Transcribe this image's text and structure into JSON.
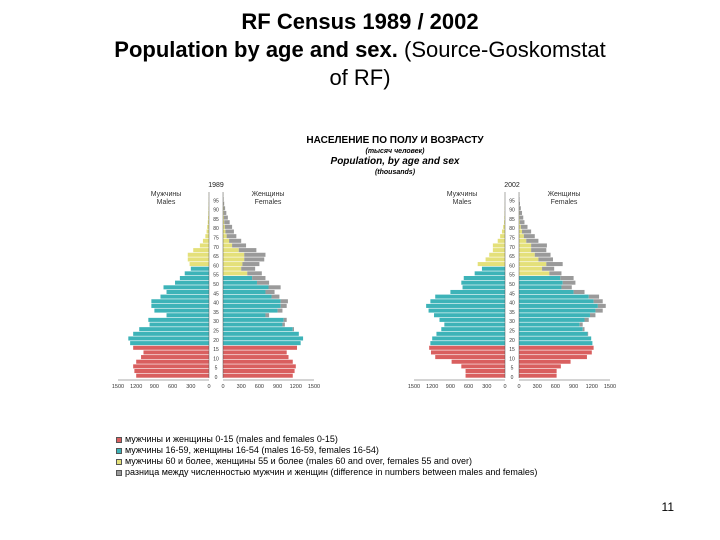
{
  "slide": {
    "title_line1": "RF Census 1989 / 2002",
    "title_line2_bold": "Population by age and sex.",
    "title_line2_rest": " (Source-Goskomstat",
    "title_line3": "of RF)",
    "page_number": "11"
  },
  "chart_data": {
    "type": "bar",
    "title_ru": "НАСЕЛЕНИЕ ПО ПОЛУ И ВОЗРАСТУ",
    "subtitle_ru": "(тысяч человек)",
    "title_en": "Population, by age and sex",
    "subtitle_en": "(thousands)",
    "colors": {
      "child": "#d95f5f",
      "working": "#3db3b8",
      "elderly": "#e4e07a",
      "difference": "#9a9a9a"
    },
    "pyramids": [
      {
        "year": "1989",
        "males_label_ru": "Мужчины",
        "males_label_en": "Males",
        "females_label_ru": "Женщины",
        "females_label_en": "Females",
        "xticks_left": [
          "1500",
          "1200",
          "900",
          "600",
          "300",
          "0"
        ],
        "xticks_right": [
          "0",
          "300",
          "600",
          "900",
          "1200",
          "1500"
        ],
        "age_ticks": [
          "0",
          "5",
          "10",
          "15",
          "20",
          "25",
          "30",
          "35",
          "40",
          "45",
          "50",
          "55",
          "60",
          "65",
          "70",
          "75",
          "80",
          "85",
          "90",
          "95"
        ],
        "xlim": [
          0,
          1500
        ],
        "age_range": [
          0,
          100
        ],
        "males": [
          1200,
          1230,
          1250,
          1200,
          1120,
          1080,
          1250,
          1300,
          1330,
          1250,
          1150,
          980,
          1000,
          700,
          900,
          950,
          950,
          800,
          700,
          750,
          560,
          480,
          400,
          300,
          320,
          350,
          350,
          260,
          150,
          100,
          60,
          40,
          30,
          20,
          15,
          10,
          8,
          5,
          3,
          2
        ],
        "females": [
          1150,
          1180,
          1200,
          1150,
          1080,
          1050,
          1220,
          1280,
          1320,
          1250,
          1170,
          1020,
          1050,
          760,
          980,
          1050,
          1070,
          930,
          850,
          950,
          760,
          700,
          640,
          530,
          600,
          680,
          700,
          550,
          380,
          300,
          220,
          180,
          150,
          110,
          80,
          55,
          35,
          20,
          10,
          5
        ]
      },
      {
        "year": "2002",
        "males_label_ru": "Мужчины",
        "males_label_en": "Males",
        "females_label_ru": "Женщины",
        "females_label_en": "Females",
        "xticks_left": [
          "1500",
          "1200",
          "900",
          "600",
          "300",
          "0"
        ],
        "xticks_right": [
          "0",
          "300",
          "600",
          "900",
          "1200",
          "1500"
        ],
        "age_ticks": [
          "0",
          "5",
          "10",
          "15",
          "20",
          "25",
          "30",
          "35",
          "40",
          "45",
          "50",
          "55",
          "60",
          "65",
          "70",
          "75",
          "80",
          "85",
          "90",
          "95"
        ],
        "xlim": [
          0,
          1500
        ],
        "age_range": [
          0,
          100
        ],
        "males": [
          650,
          650,
          720,
          880,
          1150,
          1220,
          1250,
          1230,
          1200,
          1130,
          1050,
          1000,
          1080,
          1170,
          1260,
          1300,
          1230,
          1150,
          900,
          700,
          720,
          680,
          500,
          380,
          450,
          320,
          260,
          200,
          200,
          120,
          80,
          50,
          30,
          15,
          10,
          6,
          4,
          2,
          1,
          1
        ],
        "females": [
          620,
          620,
          690,
          850,
          1120,
          1200,
          1230,
          1210,
          1190,
          1140,
          1080,
          1050,
          1150,
          1260,
          1380,
          1430,
          1380,
          1320,
          1080,
          870,
          930,
          900,
          700,
          580,
          720,
          560,
          520,
          450,
          460,
          320,
          260,
          200,
          140,
          90,
          70,
          50,
          30,
          15,
          8,
          3
        ]
      }
    ],
    "legend": [
      {
        "key": "child",
        "label": "мужчины и женщины 0-15 (males and females 0-15)"
      },
      {
        "key": "working",
        "label": "мужчины 16-59, женщины 16-54 (males 16-59, females 16-54)"
      },
      {
        "key": "elderly",
        "label": "мужчины 60 и более, женщины 55 и более (males 60 and over, females 55 and over)"
      },
      {
        "key": "difference",
        "label": "разница между численностью мужчин и женщин (difference in numbers between males and females)"
      }
    ]
  }
}
